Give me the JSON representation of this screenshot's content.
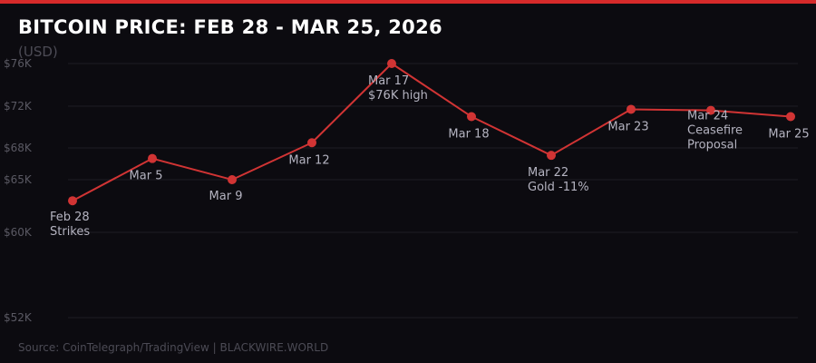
{
  "header": {
    "title": "BITCOIN PRICE: FEB 28 - MAR 25, 2026",
    "subtitle": "(USD)"
  },
  "footer": {
    "source": "Source: CoinTelegraph/TradingView  |  BLACKWIRE.WORLD"
  },
  "colors": {
    "background": "#0c0b10",
    "accent": "#d62a2a",
    "line": "#d13434",
    "grid": "#1e1d25",
    "tick_label": "#5a5963",
    "point_label": "#b4b3c0"
  },
  "chart_data": {
    "type": "line",
    "ylim": [
      52000,
      76000
    ],
    "ticks": [
      {
        "value": 76000,
        "label": "$76K"
      },
      {
        "value": 72000,
        "label": "$72K"
      },
      {
        "value": 68000,
        "label": "$68K"
      },
      {
        "value": 65000,
        "label": "$65K"
      },
      {
        "value": 60000,
        "label": "$60K"
      },
      {
        "value": 52000,
        "label": "$52K"
      }
    ],
    "grid": true,
    "points": [
      {
        "x": "Feb 28",
        "y": 63000,
        "label": [
          "Feb 28",
          "Strikes"
        ]
      },
      {
        "x": "Mar 5",
        "y": 67000,
        "label": [
          "Mar 5"
        ]
      },
      {
        "x": "Mar 9",
        "y": 65000,
        "label": [
          "Mar 9"
        ]
      },
      {
        "x": "Mar 12",
        "y": 68500,
        "label": [
          "Mar 12"
        ]
      },
      {
        "x": "Mar 17",
        "y": 76000,
        "label": [
          "Mar 17",
          "$76K high"
        ]
      },
      {
        "x": "Mar 18",
        "y": 71000,
        "label": [
          "Mar 18"
        ]
      },
      {
        "x": "Mar 22",
        "y": 67300,
        "label": [
          "Mar 22",
          "Gold -11%"
        ]
      },
      {
        "x": "Mar 23",
        "y": 71700,
        "label": [
          "Mar 23"
        ]
      },
      {
        "x": "Mar 24",
        "y": 71600,
        "label": [
          "Mar 24",
          "Ceasefire",
          "Proposal"
        ]
      },
      {
        "x": "Mar 25",
        "y": 71000,
        "label": [
          "Mar 25"
        ]
      }
    ]
  }
}
